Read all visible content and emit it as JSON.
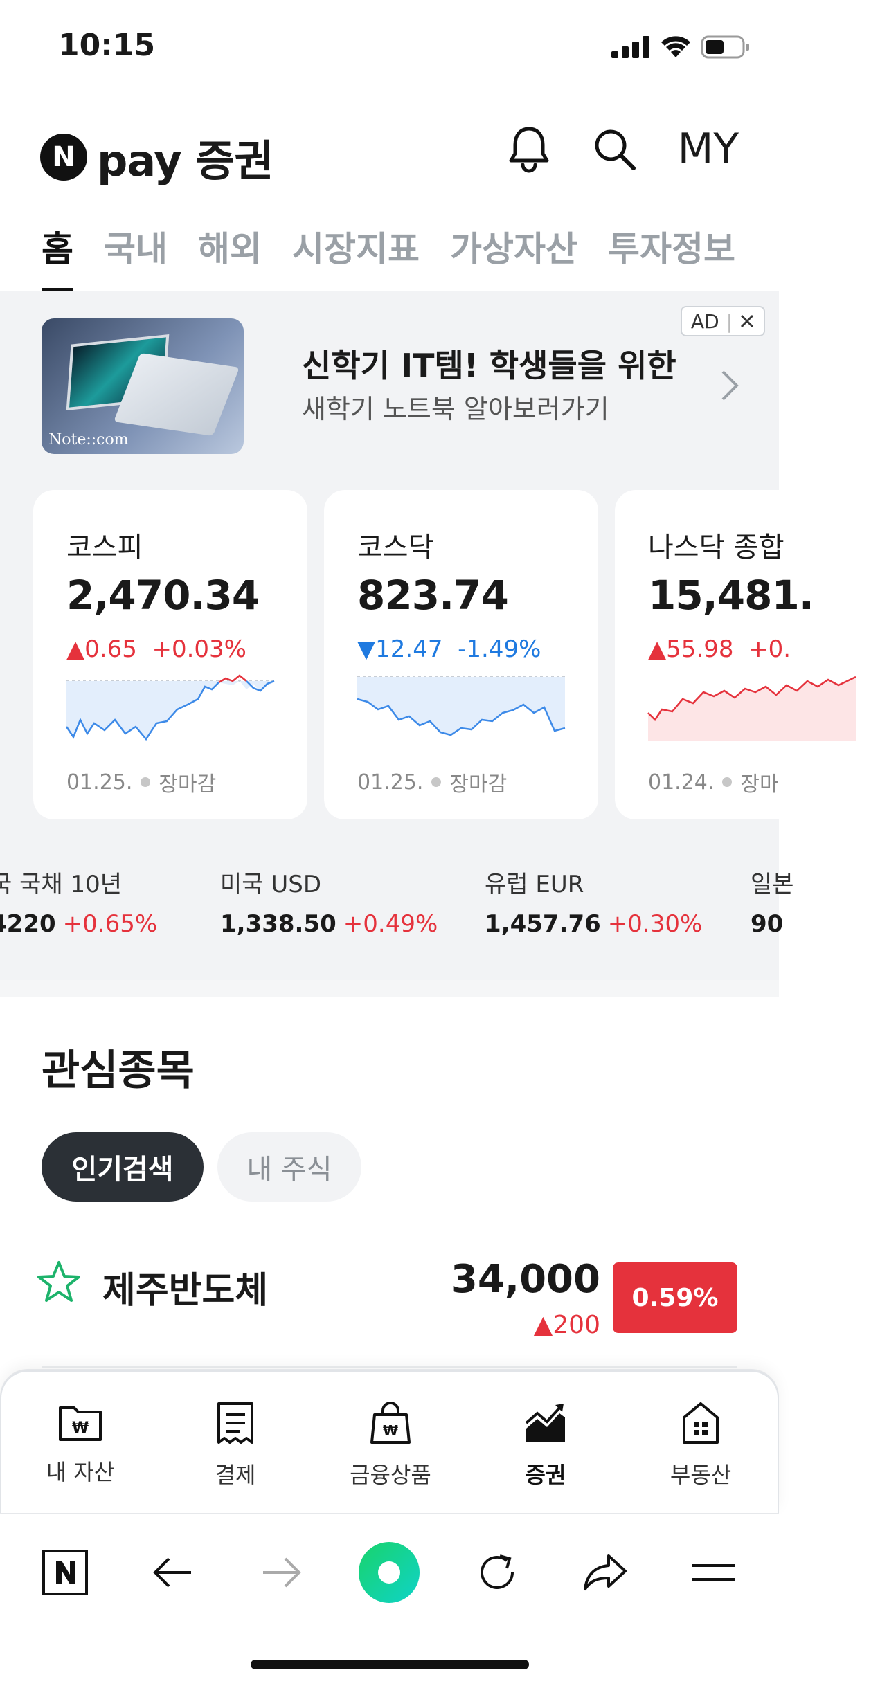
{
  "status": {
    "time": "10:15"
  },
  "header": {
    "brand_n": "N",
    "brand": "pay 증권",
    "my": "MY"
  },
  "tabs": [
    "홈",
    "국내",
    "해외",
    "시장지표",
    "가상자산",
    "투자정보"
  ],
  "ad": {
    "title": "신학기 IT템! 학생들을 위한",
    "subtitle": "새학기 노트북 알아보러가기",
    "badge": "AD",
    "image_caption": "Note::com"
  },
  "indices": [
    {
      "name": "코스피",
      "value": "2,470.34",
      "change": "0.65",
      "pct": "+0.03%",
      "direction": "up",
      "date": "01.25.",
      "status": "장마감"
    },
    {
      "name": "코스닥",
      "value": "823.74",
      "change": "12.47",
      "pct": "-1.49%",
      "direction": "down",
      "date": "01.25.",
      "status": "장마감"
    },
    {
      "name": "나스닥 종합",
      "value": "15,481.",
      "change": "55.98",
      "pct": "+0.",
      "direction": "up",
      "date": "01.24.",
      "status": "장마"
    }
  ],
  "markets": [
    {
      "name": "국 국채 10년",
      "value": "4220",
      "pct": "+0.65%"
    },
    {
      "name": "미국 USD",
      "value": "1,338.50",
      "pct": "+0.49%"
    },
    {
      "name": "유럽 EUR",
      "value": "1,457.76",
      "pct": "+0.30%"
    },
    {
      "name": "일본",
      "value": "90",
      "pct": ""
    }
  ],
  "watchlist": {
    "title": "관심종목",
    "filters": [
      "인기검색",
      "내 주식"
    ],
    "stocks": [
      {
        "name": "제주반도체",
        "price": "34,000",
        "change": "200",
        "pct": "0.59%"
      }
    ]
  },
  "bottom_nav": [
    "내 자산",
    "결제",
    "금융상품",
    "증권",
    "부동산"
  ],
  "colors": {
    "up": "#e5323c",
    "down": "#1f7ae0",
    "dark_pill": "#2b3036"
  }
}
